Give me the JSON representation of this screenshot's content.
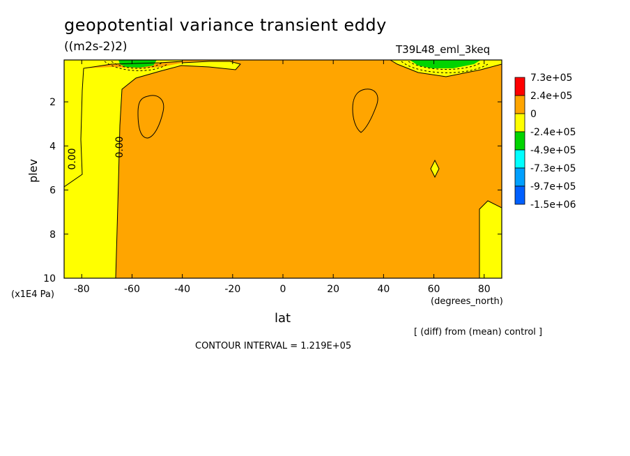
{
  "title": "geopotential variance transient eddy",
  "units": "((m2s-2)2)",
  "run_name": "T39L48_eml_3keq",
  "note": "[ (diff) from (mean) control ]",
  "contour_interval_text": "CONTOUR INTERVAL = 1.219E+05",
  "chart_data": {
    "type": "heatmap",
    "xlabel": "lat",
    "xunit": "(degrees_north)",
    "ylabel": "plev",
    "yunit": "(x1E4 Pa)",
    "xlim": [
      -87,
      87
    ],
    "ylim": [
      10,
      0.1
    ],
    "x_ticks": [
      -80,
      -60,
      -40,
      -20,
      0,
      20,
      40,
      60,
      80
    ],
    "y_ticks": [
      2,
      4,
      6,
      8,
      10
    ],
    "contour_labels": [
      "0.00",
      "0.00"
    ],
    "legend": {
      "labels": [
        "7.3e+05",
        "2.4e+05",
        "0",
        "-2.4e+05",
        "-4.9e+05",
        "-7.3e+05",
        "-9.7e+05",
        "-1.5e+06"
      ],
      "colors": [
        "#ff0000",
        "#ffa500",
        "#ffff00",
        "#00d400",
        "#00ffff",
        "#00a0ff",
        "#0060ff"
      ]
    },
    "colors": {
      "positive": "#ffa500",
      "near_zero": "#ffff00",
      "negative": "#00d400"
    }
  }
}
